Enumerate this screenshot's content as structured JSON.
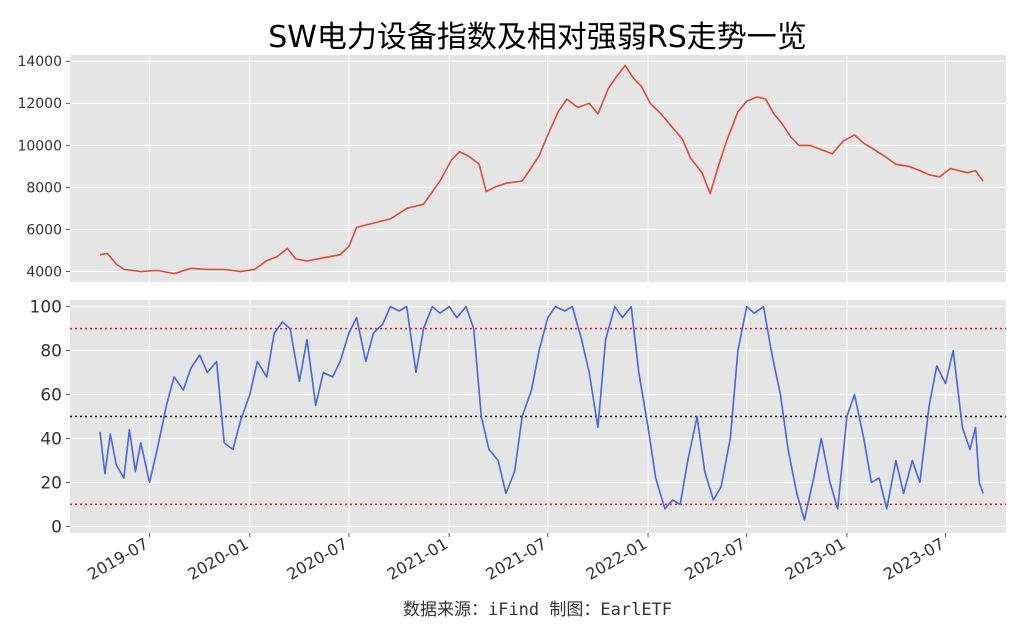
{
  "title": "SW电力设备指数及相对强弱RS走势一览",
  "footer": "数据来源：iFind 制图：EarlETF",
  "colors": {
    "index_line": "#e24a33",
    "rs_line": "#4169e1",
    "threshold_line": "#e41a1c",
    "mid_line": "#000000",
    "panel_bg": "#e5e5e5",
    "grid": "#ffffff"
  },
  "chart_data": [
    {
      "type": "line",
      "name": "index",
      "ylim": [
        3500,
        14300
      ],
      "yticks": [
        4000,
        6000,
        8000,
        10000,
        12000,
        14000
      ],
      "ytick_labels": [
        "4000",
        "6000",
        "8000",
        "10000",
        "12000",
        "14000"
      ],
      "xlim": [
        "2019-02-05",
        "2023-10-20"
      ],
      "grid": true,
      "points": [
        [
          "2019-04-01",
          4800
        ],
        [
          "2019-04-15",
          4850
        ],
        [
          "2019-05-01",
          4350
        ],
        [
          "2019-05-15",
          4100
        ],
        [
          "2019-06-15",
          4000
        ],
        [
          "2019-07-15",
          4050
        ],
        [
          "2019-08-15",
          3900
        ],
        [
          "2019-09-15",
          4150
        ],
        [
          "2019-10-15",
          4100
        ],
        [
          "2019-11-15",
          4100
        ],
        [
          "2019-12-15",
          4000
        ],
        [
          "2020-01-10",
          4100
        ],
        [
          "2020-01-31",
          4500
        ],
        [
          "2020-02-20",
          4700
        ],
        [
          "2020-03-10",
          5100
        ],
        [
          "2020-03-25",
          4600
        ],
        [
          "2020-04-15",
          4500
        ],
        [
          "2020-05-15",
          4650
        ],
        [
          "2020-06-15",
          4800
        ],
        [
          "2020-07-01",
          5200
        ],
        [
          "2020-07-15",
          6100
        ],
        [
          "2020-08-15",
          6300
        ],
        [
          "2020-09-15",
          6500
        ],
        [
          "2020-10-15",
          7000
        ],
        [
          "2020-11-15",
          7200
        ],
        [
          "2020-12-15",
          8300
        ],
        [
          "2021-01-05",
          9300
        ],
        [
          "2021-01-20",
          9700
        ],
        [
          "2021-02-05",
          9500
        ],
        [
          "2021-02-25",
          9100
        ],
        [
          "2021-03-10",
          7800
        ],
        [
          "2021-03-25",
          8000
        ],
        [
          "2021-04-15",
          8200
        ],
        [
          "2021-05-15",
          8300
        ],
        [
          "2021-06-15",
          9500
        ],
        [
          "2021-07-01",
          10500
        ],
        [
          "2021-07-20",
          11600
        ],
        [
          "2021-08-05",
          12200
        ],
        [
          "2021-08-25",
          11800
        ],
        [
          "2021-09-15",
          12000
        ],
        [
          "2021-10-01",
          11500
        ],
        [
          "2021-10-20",
          12700
        ],
        [
          "2021-11-05",
          13300
        ],
        [
          "2021-11-20",
          13800
        ],
        [
          "2021-12-05",
          13200
        ],
        [
          "2021-12-20",
          12800
        ],
        [
          "2022-01-05",
          12000
        ],
        [
          "2022-01-25",
          11500
        ],
        [
          "2022-02-10",
          11000
        ],
        [
          "2022-03-05",
          10300
        ],
        [
          "2022-03-20",
          9400
        ],
        [
          "2022-04-10",
          8700
        ],
        [
          "2022-04-25",
          7700
        ],
        [
          "2022-05-10",
          9000
        ],
        [
          "2022-05-25",
          10200
        ],
        [
          "2022-06-15",
          11600
        ],
        [
          "2022-07-01",
          12100
        ],
        [
          "2022-07-20",
          12300
        ],
        [
          "2022-08-05",
          12200
        ],
        [
          "2022-08-20",
          11500
        ],
        [
          "2022-09-05",
          11000
        ],
        [
          "2022-09-20",
          10400
        ],
        [
          "2022-10-05",
          10000
        ],
        [
          "2022-10-25",
          10000
        ],
        [
          "2022-11-15",
          9800
        ],
        [
          "2022-12-05",
          9600
        ],
        [
          "2022-12-25",
          10200
        ],
        [
          "2023-01-15",
          10500
        ],
        [
          "2023-02-01",
          10100
        ],
        [
          "2023-02-20",
          9800
        ],
        [
          "2023-03-10",
          9500
        ],
        [
          "2023-04-01",
          9100
        ],
        [
          "2023-04-25",
          9000
        ],
        [
          "2023-05-15",
          8800
        ],
        [
          "2023-06-01",
          8600
        ],
        [
          "2023-06-20",
          8500
        ],
        [
          "2023-07-10",
          8900
        ],
        [
          "2023-07-25",
          8800
        ],
        [
          "2023-08-10",
          8700
        ],
        [
          "2023-08-25",
          8800
        ],
        [
          "2023-09-08",
          8300
        ]
      ]
    },
    {
      "type": "line",
      "name": "rs",
      "ylim": [
        -3,
        103
      ],
      "yticks": [
        0,
        20,
        40,
        60,
        80,
        100
      ],
      "ytick_labels": [
        "0",
        "20",
        "40",
        "60",
        "80",
        "100"
      ],
      "xlim": [
        "2019-02-05",
        "2023-10-20"
      ],
      "hlines": [
        10,
        50,
        90
      ],
      "grid": true,
      "xtick_labels": [
        "2019-07",
        "2020-01",
        "2020-07",
        "2021-01",
        "2021-07",
        "2022-01",
        "2022-07",
        "2023-01",
        "2023-07"
      ],
      "points": [
        [
          "2019-04-01",
          43
        ],
        [
          "2019-04-10",
          24
        ],
        [
          "2019-04-20",
          42
        ],
        [
          "2019-05-01",
          28
        ],
        [
          "2019-05-15",
          22
        ],
        [
          "2019-05-25",
          44
        ],
        [
          "2019-06-05",
          25
        ],
        [
          "2019-06-15",
          38
        ],
        [
          "2019-07-01",
          20
        ],
        [
          "2019-07-15",
          35
        ],
        [
          "2019-08-01",
          55
        ],
        [
          "2019-08-15",
          68
        ],
        [
          "2019-09-01",
          62
        ],
        [
          "2019-09-15",
          72
        ],
        [
          "2019-10-01",
          78
        ],
        [
          "2019-10-15",
          70
        ],
        [
          "2019-11-01",
          75
        ],
        [
          "2019-11-15",
          38
        ],
        [
          "2019-12-01",
          35
        ],
        [
          "2019-12-15",
          48
        ],
        [
          "2020-01-01",
          60
        ],
        [
          "2020-01-15",
          75
        ],
        [
          "2020-02-01",
          68
        ],
        [
          "2020-02-15",
          88
        ],
        [
          "2020-03-01",
          93
        ],
        [
          "2020-03-15",
          90
        ],
        [
          "2020-04-01",
          66
        ],
        [
          "2020-04-15",
          85
        ],
        [
          "2020-05-01",
          55
        ],
        [
          "2020-05-15",
          70
        ],
        [
          "2020-06-01",
          68
        ],
        [
          "2020-06-15",
          75
        ],
        [
          "2020-07-01",
          88
        ],
        [
          "2020-07-15",
          95
        ],
        [
          "2020-08-01",
          75
        ],
        [
          "2020-08-15",
          88
        ],
        [
          "2020-09-01",
          92
        ],
        [
          "2020-09-15",
          100
        ],
        [
          "2020-10-01",
          98
        ],
        [
          "2020-10-15",
          100
        ],
        [
          "2020-11-01",
          70
        ],
        [
          "2020-11-15",
          90
        ],
        [
          "2020-12-01",
          100
        ],
        [
          "2020-12-15",
          97
        ],
        [
          "2021-01-01",
          100
        ],
        [
          "2021-01-15",
          95
        ],
        [
          "2021-02-01",
          100
        ],
        [
          "2021-02-15",
          90
        ],
        [
          "2021-03-01",
          50
        ],
        [
          "2021-03-15",
          35
        ],
        [
          "2021-04-01",
          30
        ],
        [
          "2021-04-15",
          15
        ],
        [
          "2021-05-01",
          25
        ],
        [
          "2021-05-15",
          50
        ],
        [
          "2021-06-01",
          62
        ],
        [
          "2021-06-15",
          80
        ],
        [
          "2021-07-01",
          95
        ],
        [
          "2021-07-15",
          100
        ],
        [
          "2021-08-01",
          98
        ],
        [
          "2021-08-15",
          100
        ],
        [
          "2021-09-01",
          85
        ],
        [
          "2021-09-15",
          70
        ],
        [
          "2021-10-01",
          45
        ],
        [
          "2021-10-15",
          85
        ],
        [
          "2021-11-01",
          100
        ],
        [
          "2021-11-15",
          95
        ],
        [
          "2021-12-01",
          100
        ],
        [
          "2021-12-15",
          70
        ],
        [
          "2022-01-01",
          45
        ],
        [
          "2022-01-15",
          22
        ],
        [
          "2022-02-01",
          8
        ],
        [
          "2022-02-15",
          12
        ],
        [
          "2022-03-01",
          10
        ],
        [
          "2022-03-15",
          30
        ],
        [
          "2022-04-01",
          50
        ],
        [
          "2022-04-15",
          25
        ],
        [
          "2022-05-01",
          12
        ],
        [
          "2022-05-15",
          18
        ],
        [
          "2022-06-01",
          40
        ],
        [
          "2022-06-15",
          80
        ],
        [
          "2022-07-01",
          100
        ],
        [
          "2022-07-15",
          97
        ],
        [
          "2022-08-01",
          100
        ],
        [
          "2022-08-15",
          80
        ],
        [
          "2022-09-01",
          60
        ],
        [
          "2022-09-15",
          35
        ],
        [
          "2022-10-01",
          15
        ],
        [
          "2022-10-15",
          3
        ],
        [
          "2022-11-01",
          22
        ],
        [
          "2022-11-15",
          40
        ],
        [
          "2022-12-01",
          20
        ],
        [
          "2022-12-15",
          8
        ],
        [
          "2023-01-01",
          50
        ],
        [
          "2023-01-15",
          60
        ],
        [
          "2023-02-01",
          40
        ],
        [
          "2023-02-15",
          20
        ],
        [
          "2023-03-01",
          22
        ],
        [
          "2023-03-15",
          8
        ],
        [
          "2023-04-01",
          30
        ],
        [
          "2023-04-15",
          15
        ],
        [
          "2023-05-01",
          30
        ],
        [
          "2023-05-15",
          20
        ],
        [
          "2023-06-01",
          55
        ],
        [
          "2023-06-15",
          73
        ],
        [
          "2023-07-01",
          65
        ],
        [
          "2023-07-15",
          80
        ],
        [
          "2023-08-01",
          45
        ],
        [
          "2023-08-15",
          35
        ],
        [
          "2023-08-25",
          45
        ],
        [
          "2023-09-01",
          20
        ],
        [
          "2023-09-08",
          15
        ]
      ]
    }
  ]
}
